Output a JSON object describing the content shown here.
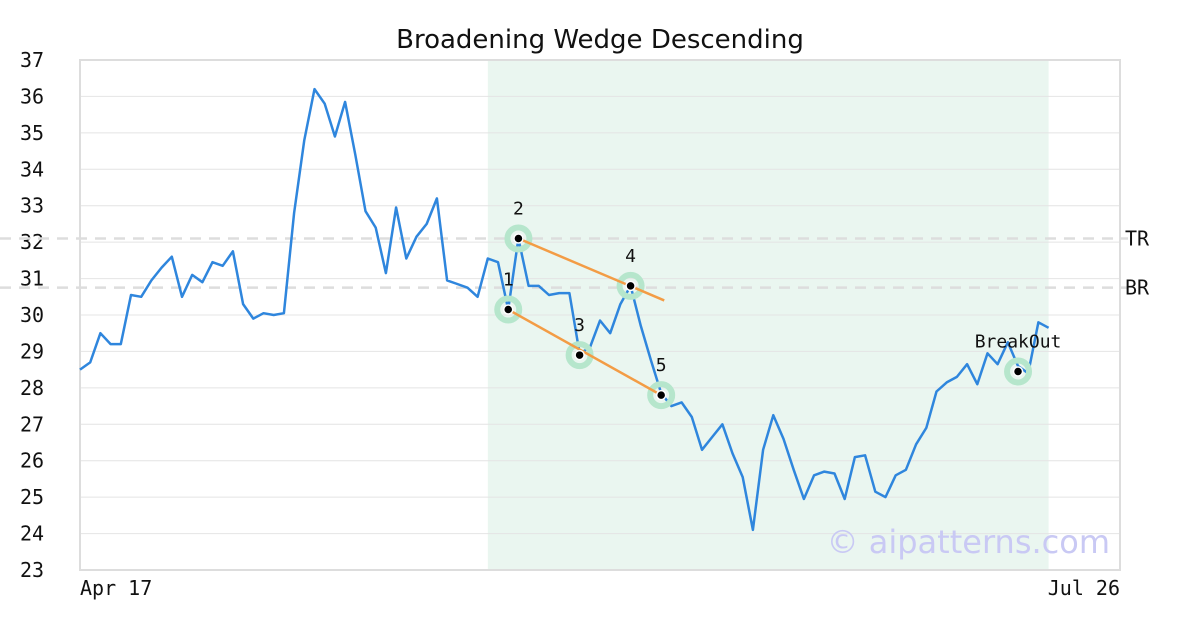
{
  "chart_data": {
    "type": "line",
    "title": "Broadening Wedge Descending",
    "xlabel": "",
    "ylabel": "",
    "ylim": [
      23,
      37
    ],
    "y_ticks": [
      23,
      24,
      25,
      26,
      27,
      28,
      29,
      30,
      31,
      32,
      33,
      34,
      35,
      36,
      37
    ],
    "x_tick_labels": [
      "Apr 17",
      "Jul 26"
    ],
    "x_range": [
      0,
      102
    ],
    "grid": "horizontal",
    "line_color": "#2f86dd",
    "series": [
      {
        "values": [
          28.5,
          28.7,
          29.5,
          29.2,
          29.2,
          30.55,
          30.5,
          30.95,
          31.3,
          31.6,
          30.5,
          31.1,
          30.9,
          31.45,
          31.35,
          31.75,
          30.3,
          29.9,
          30.05,
          30.0,
          30.05,
          32.8,
          34.8,
          36.2,
          35.8,
          34.9,
          35.85,
          34.4,
          32.85,
          32.4,
          31.15,
          32.95,
          31.55,
          32.15,
          32.5,
          33.2,
          30.95,
          30.85,
          30.75,
          30.5,
          31.55,
          31.45,
          30.15,
          32.1,
          30.8,
          30.8,
          30.55,
          30.6,
          30.6,
          28.95,
          29.1,
          29.85,
          29.5,
          30.3,
          30.8,
          29.7,
          28.75,
          27.85,
          27.5,
          27.6,
          27.2,
          26.3,
          26.65,
          27.0,
          26.2,
          25.55,
          24.1,
          26.3,
          27.25,
          26.6,
          25.75,
          24.95,
          25.6,
          25.7,
          25.65,
          24.95,
          26.1,
          26.15,
          25.15,
          25.0,
          25.6,
          25.75,
          26.45,
          26.9,
          27.9,
          28.15,
          28.3,
          28.65,
          28.1,
          28.95,
          28.65,
          29.25,
          28.6,
          28.4,
          29.8,
          29.65
        ]
      }
    ],
    "highlight_range": {
      "x_start": 40,
      "x_end": 95,
      "color": "#eaf6f0"
    },
    "horizontal_lines": [
      {
        "label": "TR",
        "y": 32.1
      },
      {
        "label": "BR",
        "y": 30.75
      }
    ],
    "points": [
      {
        "label": "1",
        "x": 42,
        "y": 30.15
      },
      {
        "label": "2",
        "x": 43,
        "y": 32.1
      },
      {
        "label": "3",
        "x": 49,
        "y": 28.9
      },
      {
        "label": "4",
        "x": 54,
        "y": 30.8
      },
      {
        "label": "5",
        "x": 57,
        "y": 27.8
      },
      {
        "label": "BreakOut",
        "x": 92,
        "y": 28.45
      }
    ],
    "trendlines": [
      {
        "from": [
          43,
          32.1
        ],
        "to": [
          57.3,
          30.4
        ]
      },
      {
        "from": [
          42,
          30.15
        ],
        "to": [
          57,
          27.8
        ]
      }
    ],
    "watermark": "© aipatterns.com"
  }
}
